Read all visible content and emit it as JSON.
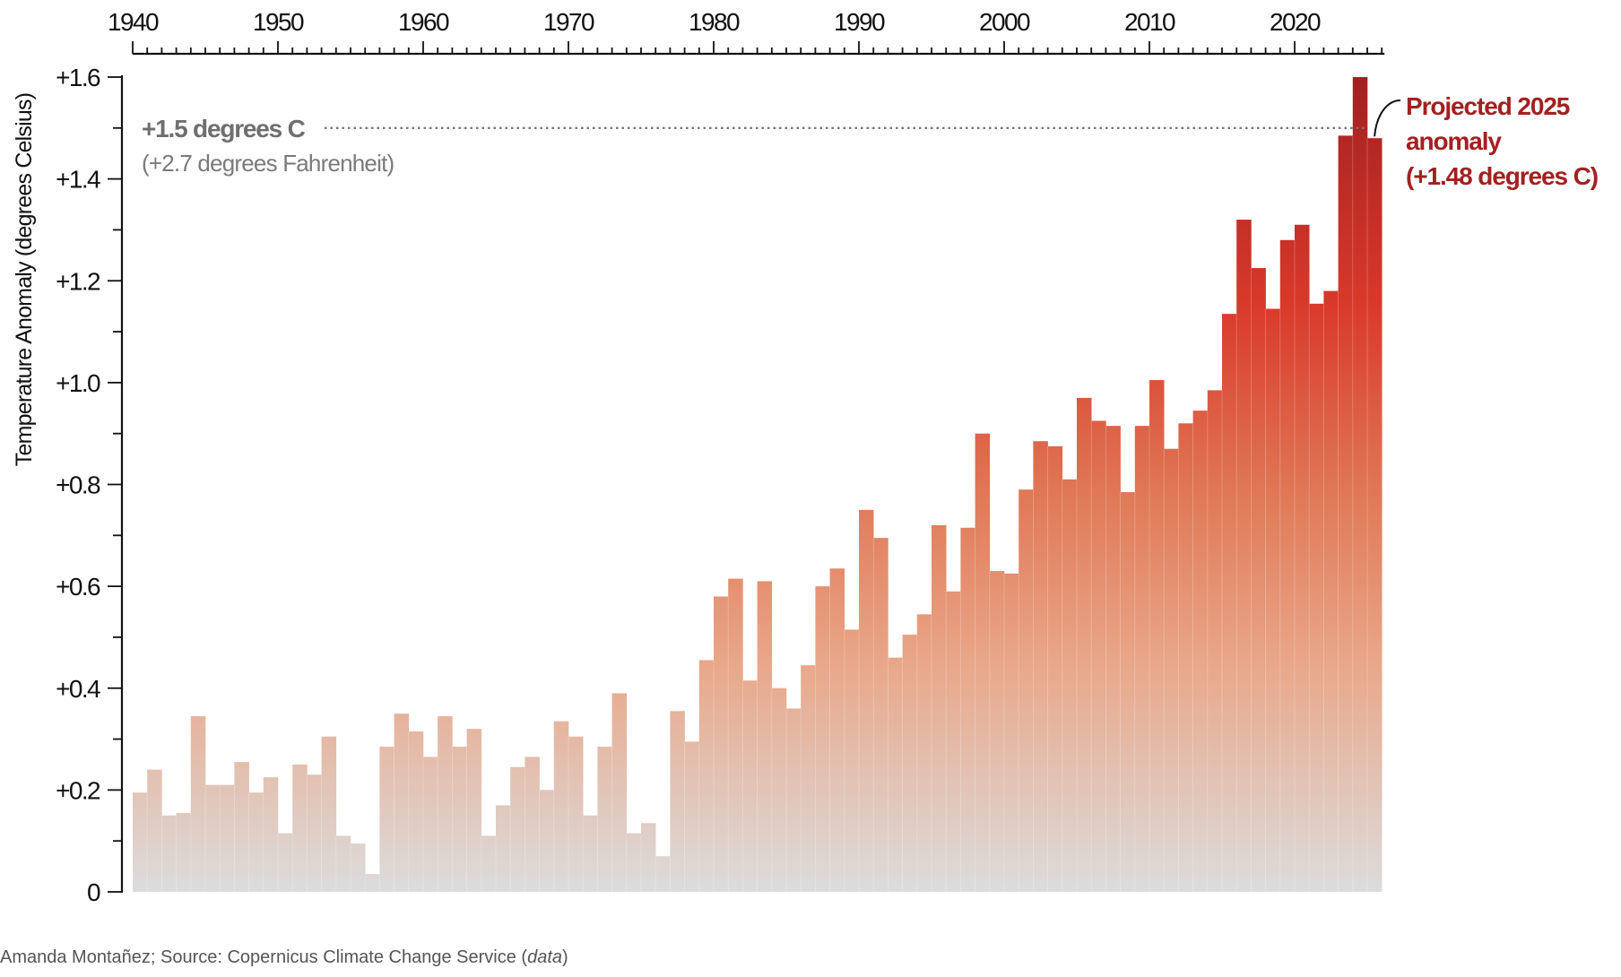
{
  "chart_data": {
    "type": "bar",
    "ylabel": "Temperature Anomaly (degrees Celsius)",
    "ylim": [
      0,
      1.6
    ],
    "xlim": [
      1940,
      2025
    ],
    "x_ticks": [
      1940,
      1950,
      1960,
      1970,
      1980,
      1990,
      2000,
      2010,
      2020
    ],
    "x_tick_labels": [
      "1940",
      "1950",
      "1960",
      "1970",
      "1980",
      "1990",
      "2000",
      "2010",
      "2020"
    ],
    "x_axis_position": "top",
    "y_ticks": [
      0,
      0.2,
      0.4,
      0.6,
      0.8,
      1.0,
      1.2,
      1.4,
      1.6
    ],
    "y_tick_labels": [
      "0",
      "+0.2",
      "+0.4",
      "+0.6",
      "+0.8",
      "+1.0",
      "+1.2",
      "+1.4",
      "+1.6"
    ],
    "grid": false,
    "categories": [
      1940,
      1941,
      1942,
      1943,
      1944,
      1945,
      1946,
      1947,
      1948,
      1949,
      1950,
      1951,
      1952,
      1953,
      1954,
      1955,
      1956,
      1957,
      1958,
      1959,
      1960,
      1961,
      1962,
      1963,
      1964,
      1965,
      1966,
      1967,
      1968,
      1969,
      1970,
      1971,
      1972,
      1973,
      1974,
      1975,
      1976,
      1977,
      1978,
      1979,
      1980,
      1981,
      1982,
      1983,
      1984,
      1985,
      1986,
      1987,
      1988,
      1989,
      1990,
      1991,
      1992,
      1993,
      1994,
      1995,
      1996,
      1997,
      1998,
      1999,
      2000,
      2001,
      2002,
      2003,
      2004,
      2005,
      2006,
      2007,
      2008,
      2009,
      2010,
      2011,
      2012,
      2013,
      2014,
      2015,
      2016,
      2017,
      2018,
      2019,
      2020,
      2021,
      2022,
      2023,
      2024,
      2025
    ],
    "values": [
      0.195,
      0.24,
      0.15,
      0.155,
      0.345,
      0.21,
      0.21,
      0.255,
      0.195,
      0.225,
      0.115,
      0.25,
      0.23,
      0.305,
      0.11,
      0.095,
      0.035,
      0.285,
      0.35,
      0.315,
      0.265,
      0.345,
      0.285,
      0.32,
      0.11,
      0.17,
      0.245,
      0.265,
      0.2,
      0.335,
      0.305,
      0.15,
      0.285,
      0.39,
      0.115,
      0.135,
      0.07,
      0.355,
      0.295,
      0.455,
      0.58,
      0.615,
      0.415,
      0.61,
      0.4,
      0.36,
      0.445,
      0.6,
      0.635,
      0.515,
      0.75,
      0.695,
      0.46,
      0.505,
      0.545,
      0.72,
      0.59,
      0.715,
      0.9,
      0.63,
      0.625,
      0.79,
      0.885,
      0.875,
      0.81,
      0.97,
      0.925,
      0.915,
      0.785,
      0.915,
      1.005,
      0.87,
      0.92,
      0.945,
      0.985,
      1.135,
      1.32,
      1.225,
      1.145,
      1.28,
      1.31,
      1.155,
      1.18,
      1.485,
      1.6,
      1.48
    ],
    "projected_year": 2025,
    "reference_line": {
      "value": 1.5,
      "label": "+1.5 degrees C",
      "sublabel": "(+2.7 degrees Fahrenheit)"
    },
    "annotation": {
      "lines": [
        "Projected 2025",
        "anomaly",
        "(+1.48 degrees C)"
      ]
    },
    "colors": {
      "bar_low": "#dcdcdc",
      "bar_mid": "#e9a789",
      "bar_orange": "#e07a58",
      "bar_red": "#d9392b",
      "bar_dark": "#a32020",
      "reference_text": "#6f6f6f",
      "annotation_text": "#a32020",
      "axis": "#111111"
    }
  },
  "credit": {
    "prefix": "Amanda Montañez; Source: Copernicus Climate Change Service (",
    "link": "data",
    "suffix": ")"
  }
}
